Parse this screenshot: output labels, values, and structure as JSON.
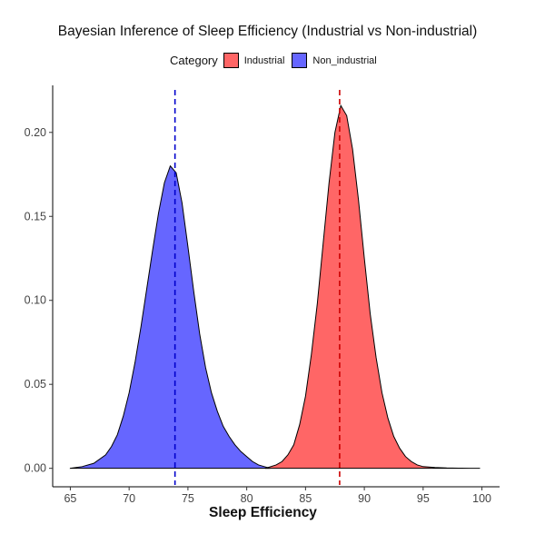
{
  "chart_data": {
    "type": "area",
    "title": "Bayesian Inference of Sleep Efficiency (Industrial vs Non-industrial)",
    "xlabel": "Sleep Efficiency",
    "ylabel": "",
    "xlim": [
      63.5,
      101.5
    ],
    "ylim": [
      -0.011,
      0.228
    ],
    "x_ticks": [
      65,
      70,
      75,
      80,
      85,
      90,
      95,
      100
    ],
    "x_tick_labels": [
      "65",
      "70",
      "75",
      "80",
      "85",
      "90",
      "95",
      "100"
    ],
    "y_ticks": [
      0.0,
      0.05,
      0.1,
      0.15,
      0.2
    ],
    "y_tick_labels": [
      "0.00",
      "0.05",
      "0.10",
      "0.15",
      "0.20"
    ],
    "legend": {
      "title": "Category",
      "position": "top"
    },
    "series": [
      {
        "name": "Industrial",
        "color": "#FF6666",
        "mean_line_color": "#CC0000",
        "mean": 87.9,
        "x": [
          81.6,
          82.5,
          83.0,
          83.5,
          84.0,
          84.5,
          85.0,
          85.5,
          86.0,
          86.5,
          87.0,
          87.5,
          88.0,
          88.5,
          89.0,
          89.5,
          90.0,
          90.5,
          91.0,
          91.5,
          92.0,
          92.5,
          93.0,
          93.5,
          94.0,
          94.5,
          95.0,
          96.0,
          97.0,
          98.0,
          99.0,
          99.8
        ],
        "y": [
          0.0,
          0.002,
          0.004,
          0.008,
          0.014,
          0.026,
          0.043,
          0.068,
          0.098,
          0.134,
          0.17,
          0.2,
          0.216,
          0.21,
          0.19,
          0.16,
          0.125,
          0.092,
          0.066,
          0.045,
          0.03,
          0.019,
          0.012,
          0.007,
          0.004,
          0.002,
          0.001,
          0.0005,
          0.0002,
          0.0001,
          0.0,
          0.0
        ]
      },
      {
        "name": "Non_industrial",
        "color": "#6666FF",
        "mean_line_color": "#0000CC",
        "mean": 73.9,
        "x": [
          65.0,
          66.0,
          67.0,
          68.0,
          68.5,
          69.0,
          69.5,
          70.0,
          70.5,
          71.0,
          71.5,
          72.0,
          72.5,
          73.0,
          73.5,
          74.0,
          74.5,
          75.0,
          75.5,
          76.0,
          76.5,
          77.0,
          77.5,
          78.0,
          78.5,
          79.0,
          79.5,
          80.0,
          80.5,
          81.0,
          81.5,
          82.0
        ],
        "y": [
          0.0,
          0.001,
          0.003,
          0.008,
          0.013,
          0.02,
          0.031,
          0.045,
          0.063,
          0.084,
          0.107,
          0.13,
          0.152,
          0.17,
          0.18,
          0.176,
          0.158,
          0.132,
          0.105,
          0.08,
          0.06,
          0.045,
          0.034,
          0.025,
          0.019,
          0.014,
          0.01,
          0.007,
          0.004,
          0.002,
          0.001,
          0.0
        ]
      }
    ]
  }
}
